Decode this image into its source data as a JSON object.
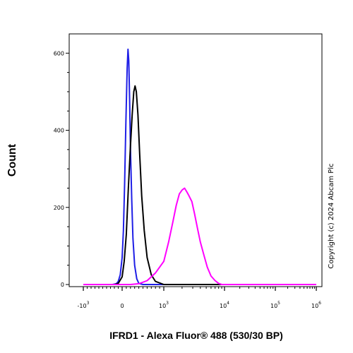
{
  "chart_data": {
    "type": "line",
    "xlabel": "IFRD1 - Alexa Fluor® 488 (530/30 BP)",
    "ylabel": "Count",
    "x_scale": "biexponential",
    "ylim": [
      0,
      650
    ],
    "y_ticks": [
      {
        "value": 0,
        "label": "0"
      },
      {
        "value": 200,
        "label": "200"
      },
      {
        "value": 400,
        "label": "400"
      },
      {
        "value": 600,
        "label": "600"
      }
    ],
    "x_ticks": [
      {
        "value": -1000,
        "base": "-10",
        "exp": "3"
      },
      {
        "value": 0,
        "base": "0",
        "exp": ""
      },
      {
        "value": 1000,
        "base": "10",
        "exp": "3"
      },
      {
        "value": 10000,
        "base": "10",
        "exp": "4"
      },
      {
        "value": 100000,
        "base": "10",
        "exp": "5"
      },
      {
        "value": 1000000,
        "base": "10",
        "exp": "6"
      }
    ],
    "series": [
      {
        "color": "#1f1fe6",
        "points": [
          [
            -1000,
            0
          ],
          [
            -500,
            0
          ],
          [
            -250,
            0
          ],
          [
            -150,
            2
          ],
          [
            -100,
            8
          ],
          [
            -50,
            25
          ],
          [
            0,
            70
          ],
          [
            30,
            140
          ],
          [
            60,
            260
          ],
          [
            90,
            420
          ],
          [
            120,
            560
          ],
          [
            140,
            610
          ],
          [
            160,
            580
          ],
          [
            180,
            480
          ],
          [
            200,
            350
          ],
          [
            230,
            220
          ],
          [
            260,
            120
          ],
          [
            300,
            50
          ],
          [
            350,
            15
          ],
          [
            400,
            3
          ],
          [
            500,
            0
          ],
          [
            1000000,
            0
          ]
        ]
      },
      {
        "color": "#000000",
        "points": [
          [
            -1000,
            0
          ],
          [
            -500,
            0
          ],
          [
            -200,
            0
          ],
          [
            -100,
            3
          ],
          [
            0,
            20
          ],
          [
            50,
            60
          ],
          [
            100,
            130
          ],
          [
            150,
            250
          ],
          [
            200,
            360
          ],
          [
            240,
            440
          ],
          [
            280,
            500
          ],
          [
            310,
            515
          ],
          [
            340,
            500
          ],
          [
            380,
            440
          ],
          [
            420,
            340
          ],
          [
            470,
            230
          ],
          [
            530,
            140
          ],
          [
            600,
            70
          ],
          [
            700,
            25
          ],
          [
            800,
            8
          ],
          [
            1000,
            0
          ],
          [
            1000000,
            0
          ]
        ]
      },
      {
        "color": "#ff00ff",
        "points": [
          [
            -1000,
            0
          ],
          [
            200,
            0
          ],
          [
            400,
            2
          ],
          [
            600,
            10
          ],
          [
            800,
            30
          ],
          [
            1000,
            60
          ],
          [
            1200,
            110
          ],
          [
            1400,
            160
          ],
          [
            1600,
            205
          ],
          [
            1800,
            235
          ],
          [
            2000,
            245
          ],
          [
            2200,
            250
          ],
          [
            2400,
            240
          ],
          [
            2600,
            230
          ],
          [
            2900,
            215
          ],
          [
            3200,
            185
          ],
          [
            3600,
            145
          ],
          [
            4000,
            110
          ],
          [
            4600,
            75
          ],
          [
            5200,
            45
          ],
          [
            6000,
            22
          ],
          [
            7000,
            10
          ],
          [
            8000,
            3
          ],
          [
            9000,
            0
          ],
          [
            1000000,
            0
          ]
        ]
      }
    ],
    "copyright": "Copyright (c) 2024 Abcam Plc"
  }
}
